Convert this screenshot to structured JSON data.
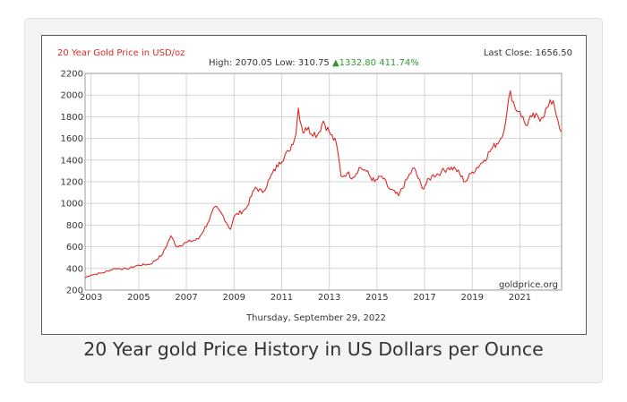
{
  "caption": "20 Year gold Price History in US Dollars per Ounce",
  "chart_data": {
    "type": "line",
    "title": "20 Year Gold Price in USD/oz",
    "stats": {
      "high_label": "High:",
      "high": "2070.05",
      "low_label": "Low:",
      "low": "310.75",
      "change": "▲1332.80 411.74%"
    },
    "last_close_text": "Last Close: 1656.50",
    "date_text": "Thursday, September 29, 2022",
    "watermark": "goldprice.org",
    "ylim": [
      200,
      2200
    ],
    "yticks": [
      200,
      400,
      600,
      800,
      1000,
      1200,
      1400,
      1600,
      1800,
      2000,
      2200
    ],
    "xlim": [
      2002.75,
      2022.75
    ],
    "xticks": [
      2003,
      2005,
      2007,
      2009,
      2011,
      2013,
      2015,
      2017,
      2019,
      2021
    ],
    "grid": true,
    "line_color": "#d92b25",
    "series": [
      {
        "x": [
          2002.75,
          2003.0,
          2003.5,
          2004.0,
          2004.5,
          2005.0,
          2005.5,
          2006.0,
          2006.35,
          2006.6,
          2007.0,
          2007.5,
          2007.9,
          2008.2,
          2008.5,
          2008.85,
          2009.0,
          2009.5,
          2009.9,
          2010.2,
          2010.5,
          2010.9,
          2011.3,
          2011.6,
          2011.7,
          2011.9,
          2012.0,
          2012.5,
          2012.75,
          2013.0,
          2013.3,
          2013.5,
          2013.75,
          2014.0,
          2014.25,
          2014.5,
          2014.9,
          2015.2,
          2015.5,
          2015.9,
          2016.3,
          2016.55,
          2016.9,
          2017.3,
          2017.7,
          2018.0,
          2018.3,
          2018.7,
          2019.0,
          2019.5,
          2019.8,
          2020.2,
          2020.4,
          2020.6,
          2020.8,
          2021.0,
          2021.25,
          2021.5,
          2021.9,
          2022.2,
          2022.4,
          2022.6,
          2022.75
        ],
        "y": [
          315,
          340,
          360,
          400,
          395,
          430,
          440,
          530,
          700,
          600,
          640,
          670,
          820,
          970,
          900,
          760,
          880,
          950,
          1150,
          1100,
          1230,
          1380,
          1480,
          1640,
          1880,
          1650,
          1700,
          1630,
          1760,
          1660,
          1550,
          1250,
          1280,
          1240,
          1330,
          1310,
          1200,
          1250,
          1140,
          1070,
          1240,
          1330,
          1140,
          1250,
          1290,
          1330,
          1320,
          1200,
          1290,
          1400,
          1500,
          1600,
          1750,
          2040,
          1880,
          1850,
          1720,
          1800,
          1790,
          1900,
          1950,
          1760,
          1660
        ]
      }
    ]
  }
}
